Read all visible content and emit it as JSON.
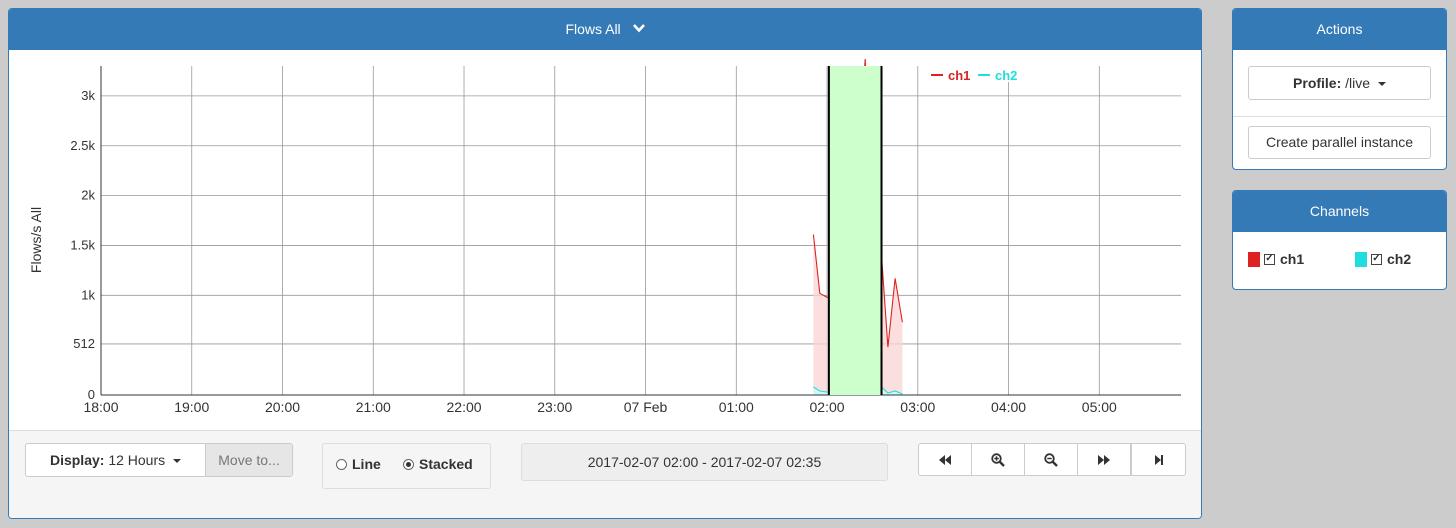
{
  "main": {
    "title": "Flows All",
    "chevron_icon": "chevron-down-icon"
  },
  "chart_data": {
    "type": "area",
    "ylabel": "Flows/s All",
    "xlabel": "",
    "y_ticks": [
      0,
      512,
      1000,
      1500,
      2000,
      2500,
      3000
    ],
    "y_tick_labels": [
      "0",
      "512",
      "1k",
      "1.5k",
      "2k",
      "2.5k",
      "3k"
    ],
    "ylim": [
      0,
      3300
    ],
    "x_ticks": [
      "18:00",
      "19:00",
      "20:00",
      "21:00",
      "22:00",
      "23:00",
      "07 Feb",
      "01:00",
      "02:00",
      "03:00",
      "04:00",
      "05:00"
    ],
    "x_tick_hours": [
      0,
      1,
      2,
      3,
      4,
      5,
      6,
      7,
      8,
      9,
      10,
      11
    ],
    "xlim_hours": [
      0,
      11.9
    ],
    "stacked": true,
    "grid": true,
    "legend_position": "top-right",
    "selection": {
      "start": "2017-02-07 02:00",
      "end": "2017-02-07 02:35",
      "start_hour": 8.02,
      "end_hour": 8.6,
      "color": "#ccffcc"
    },
    "series": [
      {
        "name": "ch1",
        "color": "#dd2222",
        "fill": "#f9d4d4",
        "x": [
          7.85,
          7.92,
          8.0,
          8.08,
          8.15,
          8.25,
          8.35,
          8.42,
          8.52,
          8.6,
          8.67,
          8.75,
          8.83
        ],
        "values": [
          1530,
          980,
          950,
          950,
          580,
          1120,
          2170,
          3150,
          1530,
          1320,
          460,
          1130,
          720
        ]
      },
      {
        "name": "ch2",
        "color": "#22dddd",
        "fill": "#c8f4f4",
        "x": [
          7.85,
          7.92,
          8.0,
          8.08,
          8.15,
          8.25,
          8.35,
          8.42,
          8.52,
          8.6,
          8.67,
          8.75,
          8.83
        ],
        "values": [
          80,
          40,
          30,
          20,
          40,
          80,
          160,
          220,
          110,
          80,
          20,
          40,
          10
        ]
      }
    ]
  },
  "footer": {
    "display_label": "Display:",
    "display_value": "12 Hours",
    "move_to_label": "Move to...",
    "radio_line_label": "Line",
    "radio_stacked_label": "Stacked",
    "selected_mode": "Stacked",
    "time_range": "2017-02-07 02:00 - 2017-02-07 02:35",
    "nav_icons": [
      "fast-backward-icon",
      "zoom-in-icon",
      "zoom-out-icon",
      "fast-forward-icon",
      "step-forward-icon"
    ]
  },
  "actions": {
    "title": "Actions",
    "profile_label": "Profile:",
    "profile_value": "/live",
    "parallel_button": "Create parallel instance"
  },
  "channels": {
    "title": "Channels",
    "items": [
      {
        "name": "ch1",
        "color": "#dd2222",
        "checked": true
      },
      {
        "name": "ch2",
        "color": "#22dddd",
        "checked": true
      }
    ]
  }
}
